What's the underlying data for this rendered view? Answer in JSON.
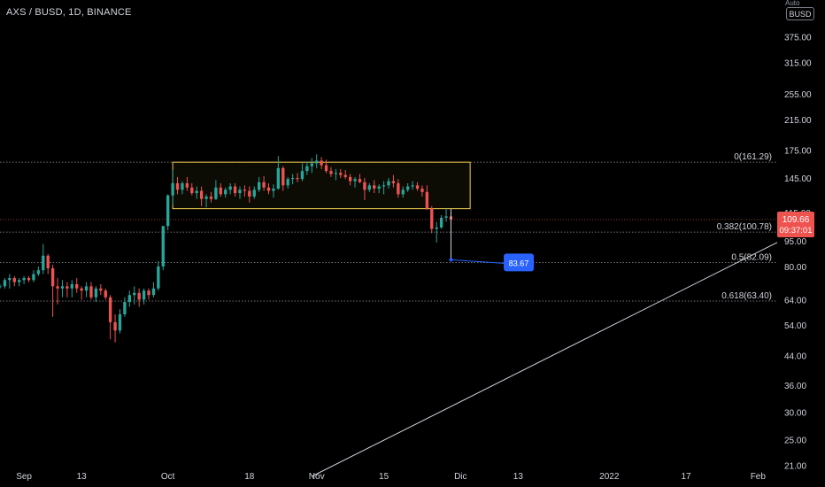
{
  "symbol_title": "AXS / BUSD, 1D, BINANCE",
  "currency_badge": "BUSD",
  "scale_mark": "Auto",
  "colors": {
    "background": "#000000",
    "up": "#26a69a",
    "down": "#ef5350",
    "axis_text": "#d1d4dc",
    "fib_line": "#9598a1",
    "range_box": "#f2d04e",
    "trend_line": "#d1d4dc",
    "measure": "#2962ff",
    "price_badge": "#ef5350"
  },
  "chart_data": {
    "type": "candlestick",
    "y_scale": "log",
    "y_range": [
      19.5,
      480
    ],
    "x_range": [
      "2021-08-27",
      "2022-02-05"
    ],
    "y_ticks": [
      "375.00",
      "315.00",
      "255.00",
      "215.00",
      "175.00",
      "145.00",
      "115.00",
      "95.00",
      "80.00",
      "64.00",
      "54.00",
      "44.00",
      "36.00",
      "30.00",
      "25.00",
      "21.00"
    ],
    "x_ticks": [
      {
        "label": "Sep",
        "date": "2021-09-01"
      },
      {
        "label": "13",
        "date": "2021-09-13"
      },
      {
        "label": "Oct",
        "date": "2021-10-01"
      },
      {
        "label": "18",
        "date": "2021-10-18"
      },
      {
        "label": "Nov",
        "date": "2021-11-01"
      },
      {
        "label": "15",
        "date": "2021-11-15"
      },
      {
        "label": "Dic",
        "date": "2021-12-01"
      },
      {
        "label": "13",
        "date": "2021-12-13"
      },
      {
        "label": "2022",
        "date": "2022-01-01"
      },
      {
        "label": "17",
        "date": "2022-01-17"
      },
      {
        "label": "Feb",
        "date": "2022-02-01"
      }
    ],
    "start_date": "2021-08-27",
    "candles": [
      [
        70,
        71,
        69,
        70
      ],
      [
        70,
        74,
        69,
        73
      ],
      [
        73,
        76,
        69,
        74
      ],
      [
        74,
        75,
        70,
        72
      ],
      [
        72,
        74,
        70,
        73
      ],
      [
        73,
        75,
        71,
        74
      ],
      [
        74,
        75,
        72,
        73
      ],
      [
        73,
        78,
        72,
        76
      ],
      [
        76,
        80,
        75,
        78
      ],
      [
        78,
        93,
        76,
        86
      ],
      [
        86,
        87,
        76,
        79
      ],
      [
        79,
        81,
        57,
        70
      ],
      [
        70,
        74,
        62,
        69
      ],
      [
        69,
        73,
        65,
        70
      ],
      [
        70,
        72,
        65,
        69
      ],
      [
        69,
        73,
        65,
        71
      ],
      [
        71,
        74,
        67,
        69
      ],
      [
        69,
        70,
        64,
        68
      ],
      [
        68,
        72,
        65,
        70
      ],
      [
        70,
        72,
        64,
        65
      ],
      [
        65,
        70,
        63,
        69
      ],
      [
        69,
        71,
        66,
        68
      ],
      [
        68,
        69,
        64,
        65
      ],
      [
        65,
        66,
        49,
        55
      ],
      [
        55,
        58,
        48,
        52
      ],
      [
        52,
        60,
        51,
        58
      ],
      [
        58,
        65,
        57,
        63
      ],
      [
        63,
        68,
        61,
        66
      ],
      [
        66,
        70,
        62,
        67
      ],
      [
        67,
        69,
        61,
        64
      ],
      [
        64,
        69,
        62,
        68
      ],
      [
        68,
        69,
        64,
        66
      ],
      [
        66,
        72,
        65,
        69
      ],
      [
        69,
        83,
        68,
        80
      ],
      [
        80,
        105,
        78,
        105
      ],
      [
        105,
        130,
        102,
        129
      ],
      [
        129,
        153,
        121,
        140
      ],
      [
        140,
        146,
        130,
        134
      ],
      [
        134,
        142,
        130,
        140
      ],
      [
        140,
        146,
        133,
        136
      ],
      [
        136,
        140,
        129,
        131
      ],
      [
        131,
        137,
        126,
        133
      ],
      [
        133,
        137,
        120,
        126
      ],
      [
        126,
        130,
        119,
        128
      ],
      [
        128,
        132,
        123,
        126
      ],
      [
        126,
        143,
        125,
        136
      ],
      [
        136,
        140,
        128,
        130
      ],
      [
        130,
        136,
        127,
        134
      ],
      [
        134,
        140,
        130,
        137
      ],
      [
        137,
        140,
        128,
        131
      ],
      [
        131,
        137,
        126,
        134
      ],
      [
        134,
        138,
        128,
        133
      ],
      [
        133,
        137,
        123,
        128
      ],
      [
        128,
        137,
        126,
        134
      ],
      [
        134,
        146,
        132,
        141
      ],
      [
        141,
        147,
        133,
        136
      ],
      [
        136,
        140,
        130,
        133
      ],
      [
        133,
        139,
        127,
        135
      ],
      [
        135,
        168,
        134,
        155
      ],
      [
        155,
        157,
        133,
        138
      ],
      [
        138,
        146,
        135,
        144
      ],
      [
        144,
        149,
        139,
        145
      ],
      [
        145,
        150,
        141,
        144
      ],
      [
        144,
        160,
        142,
        152
      ],
      [
        152,
        162,
        148,
        157
      ],
      [
        157,
        166,
        150,
        160
      ],
      [
        160,
        170,
        155,
        163
      ],
      [
        163,
        167,
        154,
        158
      ],
      [
        158,
        164,
        150,
        152
      ],
      [
        152,
        156,
        146,
        149
      ],
      [
        149,
        154,
        143,
        150
      ],
      [
        150,
        154,
        145,
        148
      ],
      [
        148,
        153,
        144,
        146
      ],
      [
        146,
        149,
        138,
        142
      ],
      [
        142,
        146,
        136,
        144
      ],
      [
        144,
        149,
        140,
        141
      ],
      [
        141,
        145,
        125,
        134
      ],
      [
        134,
        140,
        132,
        138
      ],
      [
        138,
        143,
        131,
        135
      ],
      [
        135,
        139,
        131,
        137
      ],
      [
        137,
        142,
        130,
        138
      ],
      [
        138,
        145,
        135,
        142
      ],
      [
        142,
        148,
        136,
        140
      ],
      [
        140,
        144,
        127,
        130
      ],
      [
        130,
        137,
        127,
        134
      ],
      [
        134,
        140,
        132,
        137
      ],
      [
        137,
        142,
        134,
        138
      ],
      [
        138,
        141,
        133,
        135
      ],
      [
        135,
        138,
        128,
        132
      ],
      [
        132,
        138,
        117,
        118
      ],
      [
        118,
        120,
        100,
        103
      ],
      [
        103,
        108,
        94,
        104
      ],
      [
        104,
        113,
        103,
        111
      ],
      [
        111,
        118,
        108,
        112
      ],
      [
        112,
        115,
        108,
        110
      ]
    ],
    "range_box": {
      "start": "2021-10-02",
      "end": "2021-12-03",
      "top": 161.29,
      "bottom": 118
    },
    "fib_levels": [
      {
        "label": "0(161.29)",
        "value": 161.29
      },
      {
        "label": "0.382(100.78)",
        "value": 100.78
      },
      {
        "label": "0.5(82.09)",
        "value": 82.09
      },
      {
        "label": "0.618(63.40)",
        "value": 63.4
      }
    ],
    "trend_line": {
      "start_date": "2021-10-31",
      "start_value": 19.5,
      "end_date": "2022-02-05",
      "end_value": 94
    },
    "measure": {
      "date": "2021-11-29",
      "from": 118,
      "to": 83.67,
      "end_date": "2021-12-10",
      "label": "83.67"
    },
    "last_price": {
      "price": "109.66",
      "countdown": "09:37:01",
      "value": 109.66
    }
  }
}
